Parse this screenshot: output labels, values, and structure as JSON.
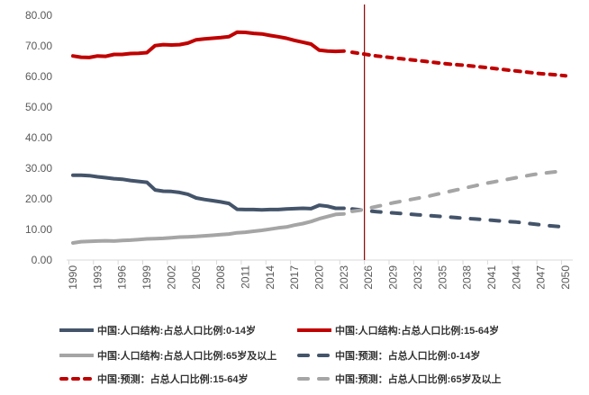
{
  "chart_data": {
    "type": "line",
    "title": "",
    "xlabel": "",
    "ylabel": "",
    "ylim": [
      0,
      80
    ],
    "xlim": [
      1990,
      2050
    ],
    "yticks": [
      "0.00",
      "10.00",
      "20.00",
      "30.00",
      "40.00",
      "50.00",
      "60.00",
      "70.00",
      "80.00"
    ],
    "xticks": [
      "1990",
      "1993",
      "1996",
      "1999",
      "2002",
      "2005",
      "2008",
      "2011",
      "2014",
      "2017",
      "2020",
      "2023",
      "2026",
      "2029",
      "2032",
      "2035",
      "2038",
      "2041",
      "2044",
      "2047",
      "2050"
    ],
    "divider_year": 2025.5,
    "grid": false,
    "legend_position": "bottom",
    "series": [
      {
        "name": "中国:人口结构:占总人口比例:0-14岁",
        "color": "#44546A",
        "style": "solid",
        "start": 1990,
        "values": [
          27.7,
          27.7,
          27.6,
          27.2,
          26.9,
          26.6,
          26.4,
          26.0,
          25.7,
          25.4,
          22.9,
          22.5,
          22.4,
          22.1,
          21.5,
          20.3,
          19.8,
          19.4,
          19.0,
          18.5,
          16.6,
          16.5,
          16.5,
          16.4,
          16.5,
          16.5,
          16.7,
          16.8,
          16.9,
          16.8,
          17.9,
          17.6,
          16.9,
          16.9
        ]
      },
      {
        "name": "中国:人口结构:占总人口比例:15-64岁",
        "color": "#C00000",
        "style": "solid",
        "start": 1990,
        "values": [
          66.7,
          66.3,
          66.2,
          66.7,
          66.6,
          67.2,
          67.2,
          67.5,
          67.6,
          67.8,
          70.1,
          70.4,
          70.3,
          70.4,
          70.9,
          72.0,
          72.3,
          72.5,
          72.7,
          73.0,
          74.5,
          74.4,
          74.1,
          73.9,
          73.4,
          73.0,
          72.5,
          71.8,
          71.2,
          70.6,
          68.6,
          68.3,
          68.2,
          68.3
        ]
      },
      {
        "name": "中国:人口结构:占总人口比例:65岁及以上",
        "color": "#A5A5A5",
        "style": "solid",
        "start": 1990,
        "values": [
          5.6,
          6.0,
          6.1,
          6.2,
          6.3,
          6.2,
          6.4,
          6.5,
          6.7,
          6.9,
          7.0,
          7.1,
          7.3,
          7.5,
          7.6,
          7.7,
          7.9,
          8.1,
          8.3,
          8.5,
          8.9,
          9.1,
          9.4,
          9.7,
          10.1,
          10.5,
          10.8,
          11.4,
          11.9,
          12.6,
          13.5,
          14.2,
          14.9,
          15.1
        ]
      },
      {
        "name": "中国:预测：占总人口比例:0-14岁",
        "color": "#44546A",
        "style": "dash",
        "start": 2024,
        "values": [
          16.7,
          16.4,
          16.1,
          15.8,
          15.6,
          15.4,
          15.2,
          15.0,
          14.8,
          14.6,
          14.4,
          14.2,
          14.0,
          13.8,
          13.6,
          13.4,
          13.2,
          13.0,
          12.8,
          12.6,
          12.4,
          12.1,
          11.8,
          11.5,
          11.2,
          11.0,
          10.8
        ]
      },
      {
        "name": "中国:预测：占总人口比例:15-64岁",
        "color": "#C00000",
        "style": "dot",
        "start": 2024,
        "values": [
          67.9,
          67.5,
          67.1,
          66.7,
          66.4,
          66.1,
          65.8,
          65.5,
          65.2,
          64.9,
          64.6,
          64.3,
          64.0,
          63.8,
          63.6,
          63.3,
          63.0,
          62.7,
          62.4,
          62.1,
          61.8,
          61.5,
          61.2,
          60.9,
          60.7,
          60.5,
          60.2
        ]
      },
      {
        "name": "中国:预测：占总人口比例:65岁及以上",
        "color": "#A5A5A5",
        "style": "dash",
        "start": 2024,
        "values": [
          15.9,
          16.3,
          16.9,
          17.5,
          18.1,
          18.7,
          19.2,
          19.7,
          20.2,
          20.7,
          21.3,
          21.9,
          22.5,
          23.1,
          23.7,
          24.3,
          24.9,
          25.4,
          25.9,
          26.4,
          26.9,
          27.4,
          27.9,
          28.3,
          28.6,
          28.9,
          29.2
        ]
      }
    ]
  }
}
